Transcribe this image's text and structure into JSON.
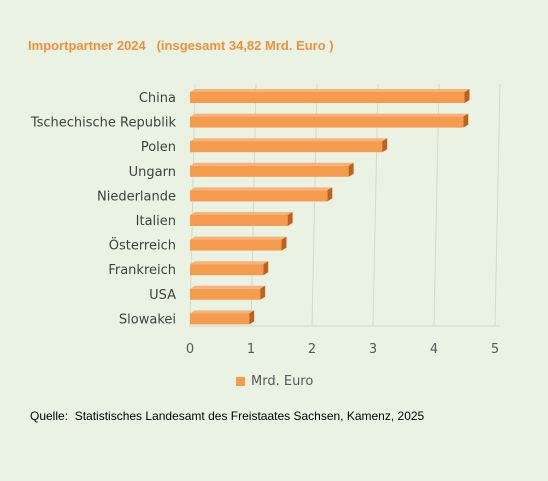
{
  "chart_data": {
    "type": "bar",
    "orientation": "horizontal",
    "title": "Importpartner 2024   (insgesamt 34,82 Mrd. Euro )",
    "categories": [
      "China",
      "Tschechische Republik",
      "Polen",
      "Ungarn",
      "Niederlande",
      "Italien",
      "Österreich",
      "Frankreich",
      "USA",
      "Slowakei"
    ],
    "series": [
      {
        "name": "Mrd. Euro",
        "values": [
          4.5,
          4.48,
          3.15,
          2.6,
          2.25,
          1.6,
          1.5,
          1.2,
          1.15,
          0.97
        ]
      }
    ],
    "xlim": [
      0,
      5
    ],
    "xticks": [
      "0",
      "1",
      "2",
      "3",
      "4",
      "5"
    ],
    "grid": true,
    "legend_position": "bottom",
    "bar_color": "#f59b4e",
    "bar_edge_color": "#c0601c"
  },
  "source": "Quelle:  Statistisches Landesamt des Freistaates Sachsen, Kamenz, 2025"
}
